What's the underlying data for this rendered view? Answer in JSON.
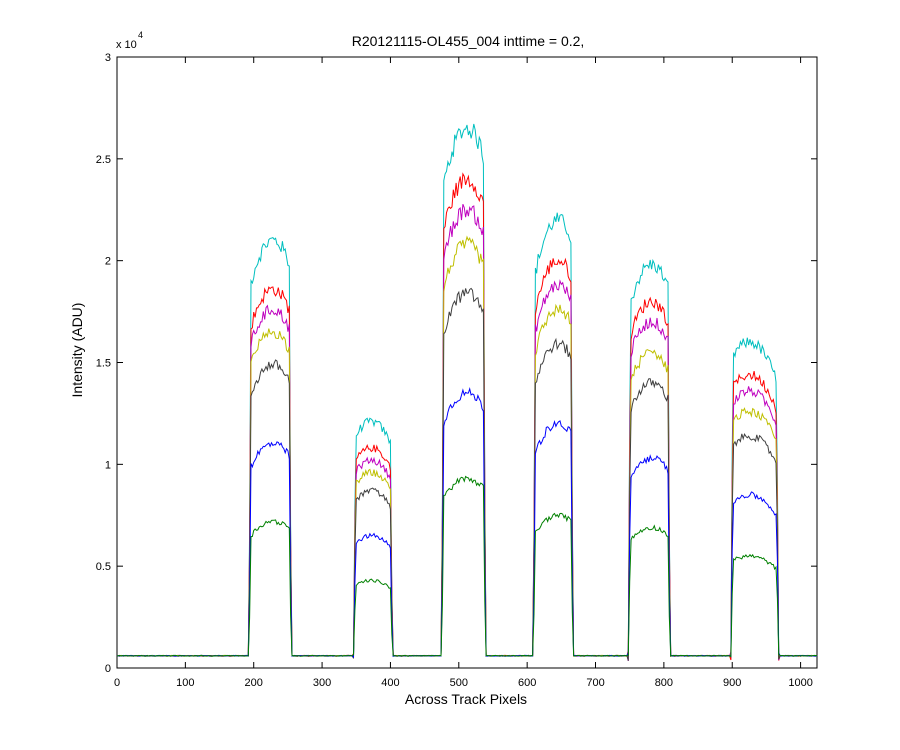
{
  "chart_data": {
    "type": "line",
    "title": "R20121115-OL455_004 inttime = 0.2,",
    "xlabel": "Across Track Pixels",
    "ylabel": "Intensity (ADU)",
    "xlim": [
      0,
      1024
    ],
    "ylim": [
      0,
      30000
    ],
    "y_exponent_label": "x 10",
    "y_exponent_power": "4",
    "x_ticks": [
      0,
      100,
      200,
      300,
      400,
      500,
      600,
      700,
      800,
      900,
      1000
    ],
    "x_tick_labels": [
      "0",
      "100",
      "200",
      "300",
      "400",
      "500",
      "600",
      "700",
      "800",
      "900",
      "1000"
    ],
    "y_ticks": [
      0,
      5000,
      10000,
      15000,
      20000,
      25000,
      30000
    ],
    "y_tick_labels": [
      "0",
      "0.5",
      "1",
      "1.5",
      "2",
      "2.5",
      "3"
    ],
    "grid": false,
    "legend": "none",
    "baseline": 600,
    "bumps": [
      {
        "x_start": 193,
        "x_end": 255,
        "x_peak": 228
      },
      {
        "x_start": 346,
        "x_end": 403,
        "x_peak": 372
      },
      {
        "x_start": 475,
        "x_end": 539,
        "x_peak": 512
      },
      {
        "x_start": 609,
        "x_end": 667,
        "x_peak": 645
      },
      {
        "x_start": 748,
        "x_end": 809,
        "x_peak": 782
      },
      {
        "x_start": 898,
        "x_end": 968,
        "x_peak": 925
      }
    ],
    "series": [
      {
        "color": "#00BFBF",
        "peaks": [
          21000,
          12100,
          26500,
          22000,
          19800,
          16000
        ]
      },
      {
        "color": "#FF0000",
        "peaks": [
          18600,
          10800,
          24000,
          20000,
          18000,
          14400
        ]
      },
      {
        "color": "#BF00BF",
        "peaks": [
          17600,
          10200,
          22500,
          18800,
          17000,
          13600
        ]
      },
      {
        "color": "#BFBF00",
        "peaks": [
          16500,
          9600,
          20800,
          17600,
          15500,
          12600
        ]
      },
      {
        "color": "#404040",
        "peaks": [
          14900,
          8700,
          18400,
          15900,
          14000,
          11400
        ]
      },
      {
        "color": "#0000FF",
        "peaks": [
          11000,
          6500,
          13500,
          12000,
          10300,
          8500
        ]
      },
      {
        "color": "#008000",
        "peaks": [
          7200,
          4300,
          9300,
          7500,
          6900,
          5500
        ]
      }
    ]
  }
}
